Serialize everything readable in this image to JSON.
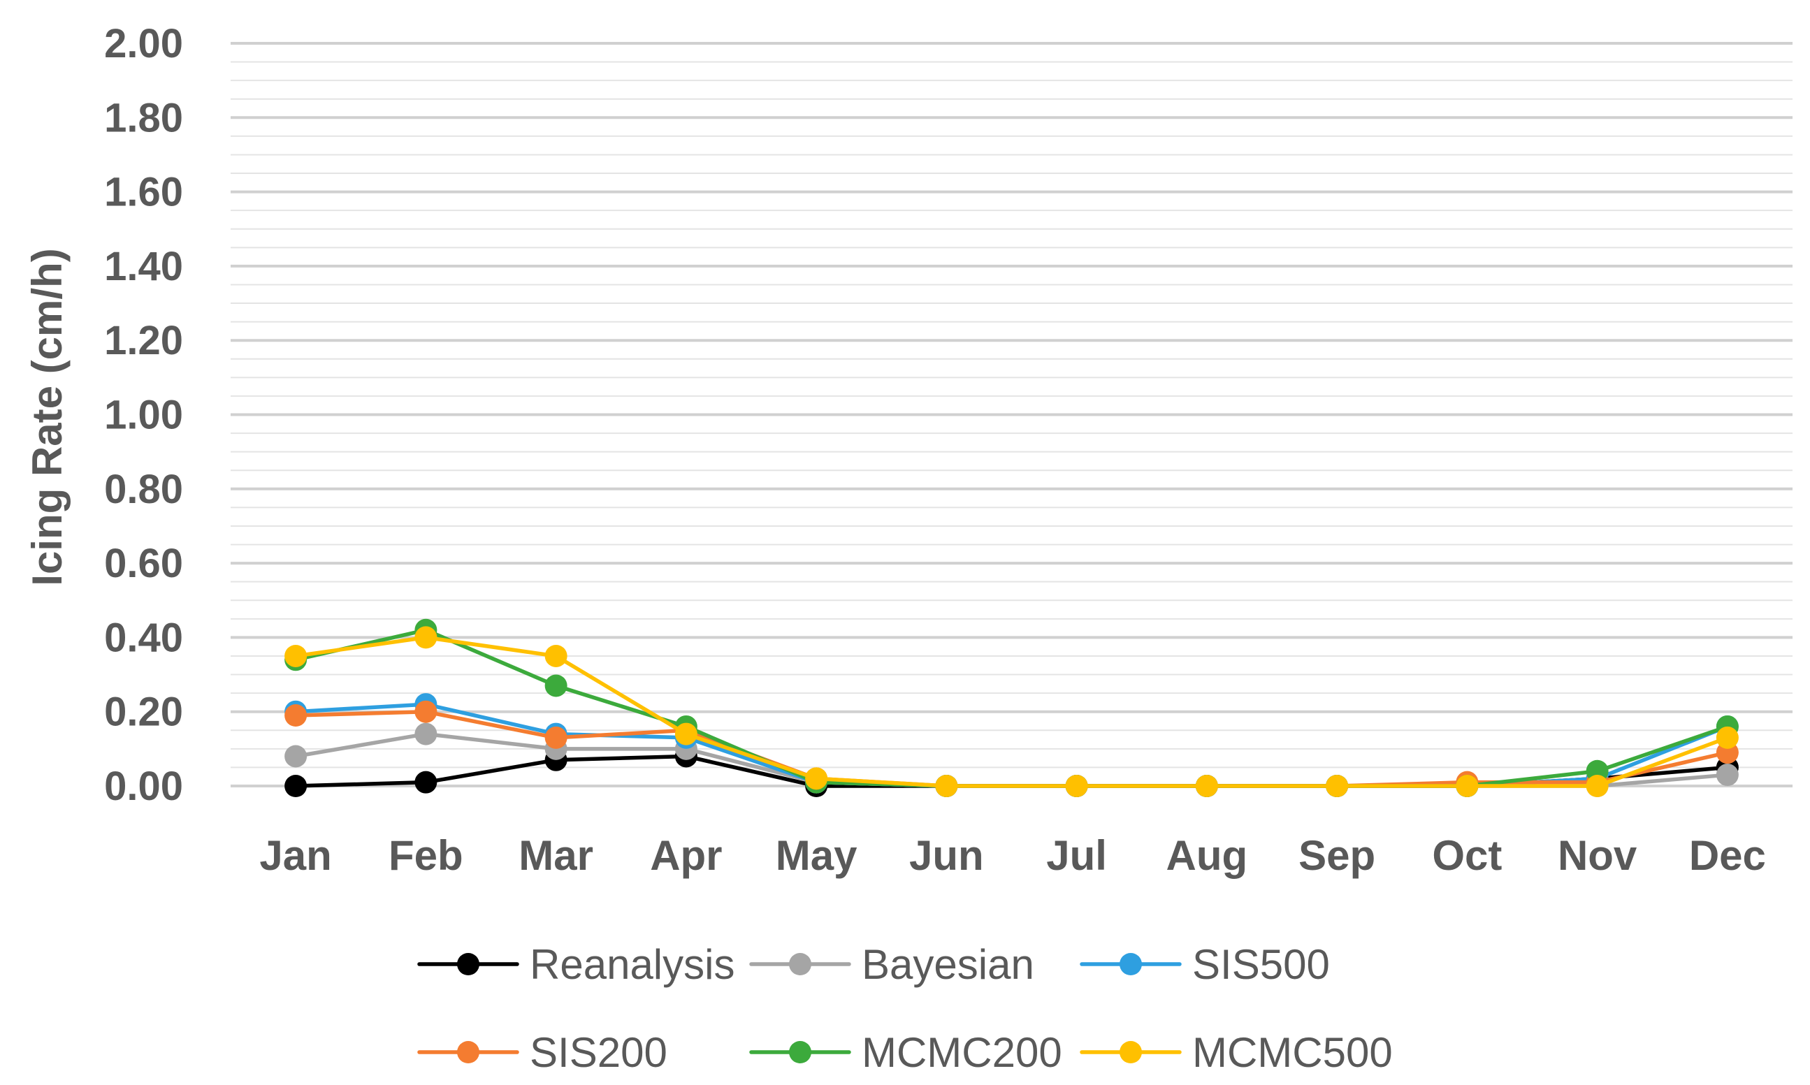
{
  "chart_data": {
    "type": "line",
    "title": "",
    "xlabel": "",
    "ylabel": "Icing Rate (cm/h)",
    "ylim": [
      0,
      2
    ],
    "ytick_labels": [
      "0.00",
      "0.20",
      "0.40",
      "0.60",
      "0.80",
      "1.00",
      "1.20",
      "1.40",
      "1.60",
      "1.80",
      "2.00"
    ],
    "categories": [
      "Jan",
      "Feb",
      "Mar",
      "Apr",
      "May",
      "Jun",
      "Jul",
      "Aug",
      "Sep",
      "Oct",
      "Nov",
      "Dec"
    ],
    "grid": "horizontal major and minor",
    "legend_position": "bottom",
    "series": [
      {
        "name": "Reanalysis",
        "color": "#000000",
        "values": [
          0.0,
          0.01,
          0.07,
          0.08,
          0.0,
          0.0,
          0.0,
          0.0,
          0.0,
          0.0,
          0.02,
          0.05
        ]
      },
      {
        "name": "Bayesian",
        "color": "#A5A5A5",
        "values": [
          0.08,
          0.14,
          0.1,
          0.1,
          0.01,
          0.0,
          0.0,
          0.0,
          0.0,
          0.0,
          0.0,
          0.03
        ]
      },
      {
        "name": "SIS500",
        "color": "#2E9FE0",
        "values": [
          0.2,
          0.22,
          0.14,
          0.13,
          0.01,
          0.0,
          0.0,
          0.0,
          0.0,
          0.0,
          0.02,
          0.16
        ]
      },
      {
        "name": "SIS200",
        "color": "#F47C30",
        "values": [
          0.19,
          0.2,
          0.13,
          0.15,
          0.02,
          0.0,
          0.0,
          0.0,
          0.0,
          0.01,
          0.01,
          0.09
        ]
      },
      {
        "name": "MCMC200",
        "color": "#3CAA3C",
        "values": [
          0.34,
          0.42,
          0.27,
          0.16,
          0.01,
          0.0,
          0.0,
          0.0,
          0.0,
          0.0,
          0.04,
          0.16
        ]
      },
      {
        "name": "MCMC500",
        "color": "#FFC000",
        "values": [
          0.35,
          0.4,
          0.35,
          0.14,
          0.02,
          0.0,
          0.0,
          0.0,
          0.0,
          0.0,
          0.0,
          0.13
        ]
      }
    ]
  }
}
